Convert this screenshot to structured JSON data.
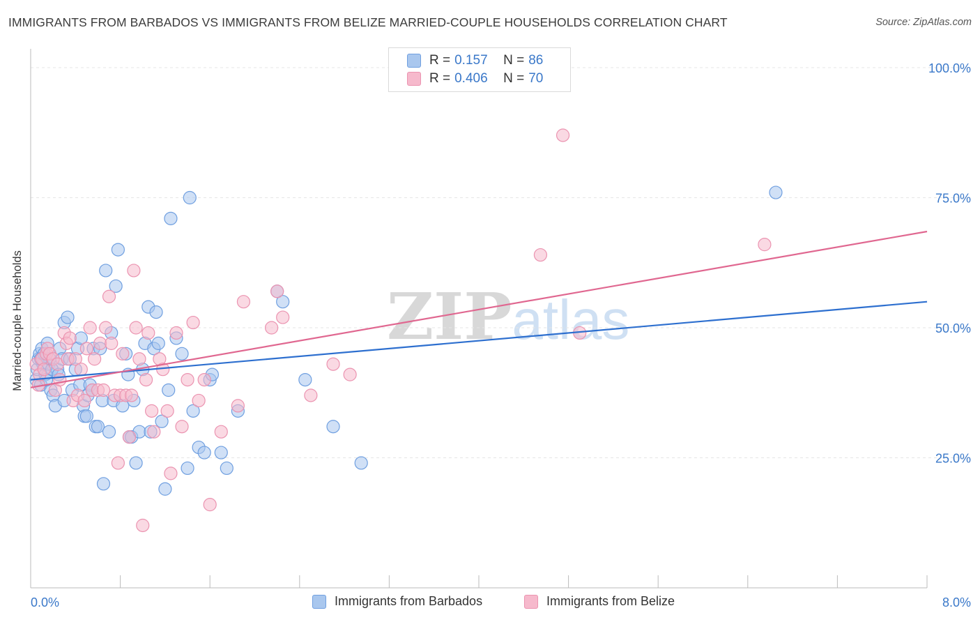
{
  "title": "IMMIGRANTS FROM BARBADOS VS IMMIGRANTS FROM BELIZE MARRIED-COUPLE HOUSEHOLDS CORRELATION CHART",
  "source": "Source: ZipAtlas.com",
  "watermark": {
    "zip": "ZIP",
    "atlas": "atlas"
  },
  "legend": {
    "barbados": {
      "r_label": "R =",
      "r_value": "0.157",
      "n_label": "N =",
      "n_value": "86"
    },
    "belize": {
      "r_label": "R =",
      "r_value": "0.406",
      "n_label": "N =",
      "n_value": "70"
    }
  },
  "bottom_legend": {
    "barbados": "Immigrants from Barbados",
    "belize": "Immigrants from Belize"
  },
  "colors": {
    "barbados_fill": "#a9c7ee",
    "barbados_stroke": "#6f9fe0",
    "barbados_line": "#2d6fcf",
    "belize_fill": "#f6b9cc",
    "belize_stroke": "#eb93b0",
    "belize_line": "#e06790",
    "tick_label": "#3a78c9",
    "grid": "#e6e6e6"
  },
  "chart_data": {
    "type": "scatter",
    "ylabel": "Married-couple Households",
    "xlim": [
      0,
      8
    ],
    "ylim": [
      0,
      105
    ],
    "x_ticks": [
      {
        "v": 0,
        "label": "0.0%"
      },
      {
        "v": 8,
        "label": "8.0%"
      }
    ],
    "y_ticks": [
      {
        "v": 25,
        "label": "25.0%"
      },
      {
        "v": 50,
        "label": "50.0%"
      },
      {
        "v": 75,
        "label": "75.0%"
      },
      {
        "v": 100,
        "label": "100.0%"
      }
    ],
    "grid": true,
    "series": [
      {
        "name": "Immigrants from Barbados",
        "key": "barbados",
        "trend": [
          [
            0.0,
            40.0
          ],
          [
            8.0,
            55.0
          ]
        ],
        "points": [
          [
            0.05,
            40
          ],
          [
            0.06,
            42
          ],
          [
            0.07,
            44
          ],
          [
            0.08,
            45
          ],
          [
            0.09,
            39
          ],
          [
            0.1,
            46
          ],
          [
            0.11,
            43
          ],
          [
            0.12,
            45
          ],
          [
            0.13,
            41
          ],
          [
            0.15,
            47
          ],
          [
            0.16,
            43
          ],
          [
            0.17,
            44
          ],
          [
            0.18,
            38
          ],
          [
            0.2,
            37
          ],
          [
            0.22,
            35
          ],
          [
            0.24,
            42
          ],
          [
            0.26,
            46
          ],
          [
            0.28,
            44
          ],
          [
            0.3,
            36
          ],
          [
            0.3,
            51
          ],
          [
            0.33,
            52
          ],
          [
            0.35,
            44
          ],
          [
            0.37,
            38
          ],
          [
            0.4,
            42
          ],
          [
            0.42,
            46
          ],
          [
            0.44,
            39
          ],
          [
            0.45,
            48
          ],
          [
            0.47,
            35
          ],
          [
            0.48,
            33
          ],
          [
            0.5,
            33
          ],
          [
            0.51,
            37
          ],
          [
            0.53,
            39
          ],
          [
            0.55,
            38
          ],
          [
            0.56,
            46
          ],
          [
            0.58,
            31
          ],
          [
            0.6,
            31
          ],
          [
            0.62,
            46
          ],
          [
            0.64,
            36
          ],
          [
            0.65,
            20
          ],
          [
            0.67,
            61
          ],
          [
            0.7,
            30
          ],
          [
            0.72,
            49
          ],
          [
            0.74,
            36
          ],
          [
            0.76,
            58
          ],
          [
            0.78,
            65
          ],
          [
            0.82,
            35
          ],
          [
            0.85,
            45
          ],
          [
            0.87,
            41
          ],
          [
            0.88,
            29
          ],
          [
            0.9,
            29
          ],
          [
            0.92,
            36
          ],
          [
            0.94,
            24
          ],
          [
            0.97,
            30
          ],
          [
            1.0,
            42
          ],
          [
            1.02,
            47
          ],
          [
            1.05,
            54
          ],
          [
            1.07,
            30
          ],
          [
            1.1,
            46
          ],
          [
            1.12,
            53
          ],
          [
            1.14,
            47
          ],
          [
            1.17,
            32
          ],
          [
            1.2,
            19
          ],
          [
            1.23,
            38
          ],
          [
            1.25,
            71
          ],
          [
            1.3,
            48
          ],
          [
            1.35,
            45
          ],
          [
            1.4,
            23
          ],
          [
            1.42,
            75
          ],
          [
            1.45,
            34
          ],
          [
            1.5,
            27
          ],
          [
            1.55,
            26
          ],
          [
            1.6,
            40
          ],
          [
            1.62,
            41
          ],
          [
            1.7,
            26
          ],
          [
            1.75,
            23
          ],
          [
            1.85,
            34
          ],
          [
            2.2,
            57
          ],
          [
            2.25,
            55
          ],
          [
            2.45,
            40
          ],
          [
            2.7,
            31
          ],
          [
            2.95,
            24
          ],
          [
            6.65,
            76
          ],
          [
            0.09,
            44
          ],
          [
            0.14,
            40
          ],
          [
            0.19,
            42
          ],
          [
            0.25,
            41
          ]
        ]
      },
      {
        "name": "Immigrants from Belize",
        "key": "belize",
        "trend": [
          [
            0.0,
            38.5
          ],
          [
            8.0,
            68.5
          ]
        ],
        "points": [
          [
            0.05,
            43
          ],
          [
            0.07,
            39
          ],
          [
            0.08,
            41
          ],
          [
            0.1,
            44
          ],
          [
            0.12,
            42
          ],
          [
            0.14,
            45
          ],
          [
            0.15,
            46
          ],
          [
            0.17,
            45
          ],
          [
            0.2,
            44
          ],
          [
            0.22,
            38
          ],
          [
            0.24,
            43
          ],
          [
            0.26,
            40
          ],
          [
            0.3,
            49
          ],
          [
            0.32,
            47
          ],
          [
            0.33,
            44
          ],
          [
            0.35,
            48
          ],
          [
            0.38,
            36
          ],
          [
            0.4,
            44
          ],
          [
            0.42,
            37
          ],
          [
            0.45,
            42
          ],
          [
            0.48,
            36
          ],
          [
            0.5,
            46
          ],
          [
            0.53,
            50
          ],
          [
            0.55,
            38
          ],
          [
            0.57,
            44
          ],
          [
            0.6,
            38
          ],
          [
            0.62,
            47
          ],
          [
            0.65,
            38
          ],
          [
            0.67,
            50
          ],
          [
            0.7,
            56
          ],
          [
            0.72,
            47
          ],
          [
            0.75,
            37
          ],
          [
            0.78,
            24
          ],
          [
            0.8,
            37
          ],
          [
            0.82,
            45
          ],
          [
            0.85,
            37
          ],
          [
            0.88,
            29
          ],
          [
            0.9,
            37
          ],
          [
            0.92,
            61
          ],
          [
            0.94,
            50
          ],
          [
            0.97,
            44
          ],
          [
            1.0,
            12
          ],
          [
            1.03,
            40
          ],
          [
            1.05,
            49
          ],
          [
            1.08,
            34
          ],
          [
            1.1,
            30
          ],
          [
            1.15,
            44
          ],
          [
            1.18,
            42
          ],
          [
            1.22,
            34
          ],
          [
            1.25,
            22
          ],
          [
            1.3,
            49
          ],
          [
            1.35,
            31
          ],
          [
            1.4,
            40
          ],
          [
            1.45,
            51
          ],
          [
            1.5,
            36
          ],
          [
            1.55,
            40
          ],
          [
            1.6,
            16
          ],
          [
            1.7,
            30
          ],
          [
            1.85,
            35
          ],
          [
            1.9,
            55
          ],
          [
            2.15,
            50
          ],
          [
            2.2,
            57
          ],
          [
            2.25,
            52
          ],
          [
            2.5,
            37
          ],
          [
            2.7,
            43
          ],
          [
            2.85,
            41
          ],
          [
            4.55,
            64
          ],
          [
            4.75,
            87
          ],
          [
            4.9,
            49
          ],
          [
            6.55,
            66
          ]
        ]
      }
    ]
  }
}
